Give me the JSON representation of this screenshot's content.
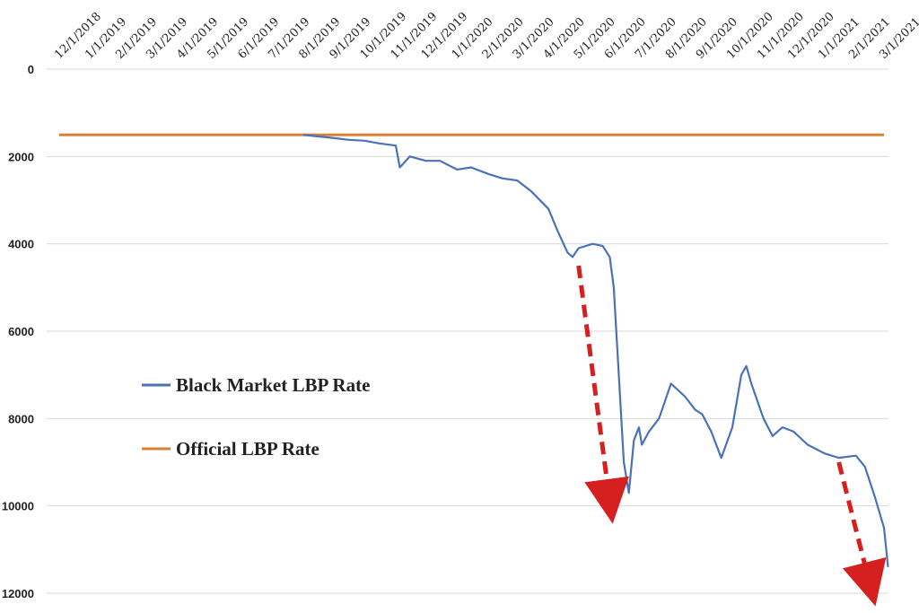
{
  "chart_data": {
    "type": "line",
    "x_tick_labels": [
      "12/1/2018",
      "1/1/2019",
      "2/1/2019",
      "3/1/2019",
      "4/1/2019",
      "5/1/2019",
      "6/1/2019",
      "7/1/2019",
      "8/1/2019",
      "9/1/2019",
      "10/1/2019",
      "11/1/2019",
      "12/1/2019",
      "1/1/2020",
      "2/1/2020",
      "3/1/2020",
      "4/1/2020",
      "5/1/2020",
      "6/1/2020",
      "7/1/2020",
      "8/1/2020",
      "9/1/2020",
      "10/1/2020",
      "11/1/2020",
      "12/1/2020",
      "1/1/2021",
      "2/1/2021",
      "3/1/2021"
    ],
    "y_ticks": [
      "0",
      "2000",
      "4000",
      "6000",
      "8000",
      "10000",
      "12000"
    ],
    "y_tick_values": [
      0,
      2000,
      4000,
      6000,
      8000,
      10000,
      12000
    ],
    "ylim": [
      0,
      12000
    ],
    "y_inverted": true,
    "grid": true,
    "legend_position": "middle-left",
    "series": [
      {
        "name": "Black Market LBP Rate",
        "color": "#4a72b8",
        "x": [
          "2019-08-01",
          "2019-08-15",
          "2019-09-01",
          "2019-09-15",
          "2019-10-01",
          "2019-10-15",
          "2019-11-01",
          "2019-11-05",
          "2019-11-15",
          "2019-12-01",
          "2019-12-15",
          "2020-01-01",
          "2020-01-15",
          "2020-02-01",
          "2020-02-15",
          "2020-03-01",
          "2020-03-15",
          "2020-04-01",
          "2020-04-10",
          "2020-04-20",
          "2020-04-25",
          "2020-05-01",
          "2020-05-15",
          "2020-05-25",
          "2020-06-01",
          "2020-06-05",
          "2020-06-10",
          "2020-06-15",
          "2020-06-20",
          "2020-06-25",
          "2020-06-30",
          "2020-07-03",
          "2020-07-10",
          "2020-07-20",
          "2020-08-01",
          "2020-08-15",
          "2020-08-25",
          "2020-09-01",
          "2020-09-10",
          "2020-09-20",
          "2020-10-01",
          "2020-10-10",
          "2020-10-15",
          "2020-10-20",
          "2020-11-01",
          "2020-11-10",
          "2020-11-20",
          "2020-12-01",
          "2020-12-15",
          "2021-01-01",
          "2021-01-15",
          "2021-02-01",
          "2021-02-10",
          "2021-02-20",
          "2021-03-01",
          "2021-03-05"
        ],
        "y": [
          1507,
          1540,
          1580,
          1620,
          1640,
          1700,
          1750,
          2250,
          2000,
          2100,
          2100,
          2300,
          2250,
          2400,
          2500,
          2550,
          2800,
          3200,
          3700,
          4200,
          4300,
          4100,
          4000,
          4050,
          4300,
          5000,
          7000,
          9000,
          9700,
          8500,
          8200,
          8600,
          8300,
          8000,
          7200,
          7500,
          7800,
          7900,
          8300,
          8900,
          8200,
          7000,
          6800,
          7200,
          8000,
          8400,
          8200,
          8300,
          8600,
          8800,
          8900,
          8850,
          9100,
          9800,
          10500,
          11400
        ]
      },
      {
        "name": "Official LBP Rate",
        "color": "#d98236",
        "x": [
          "2018-12-01",
          "2021-03-01"
        ],
        "y": [
          1507,
          1507
        ]
      }
    ],
    "annotations": [
      {
        "type": "arrow",
        "color": "#d62020",
        "style": "dashed",
        "from_x": "2020-05-01",
        "from_y": 4500,
        "to_x": "2020-06-01",
        "to_y": 9900
      },
      {
        "type": "arrow",
        "color": "#d62020",
        "style": "dashed",
        "from_x": "2021-01-15",
        "from_y": 9000,
        "to_x": "2021-02-15",
        "to_y": 11800
      }
    ]
  }
}
